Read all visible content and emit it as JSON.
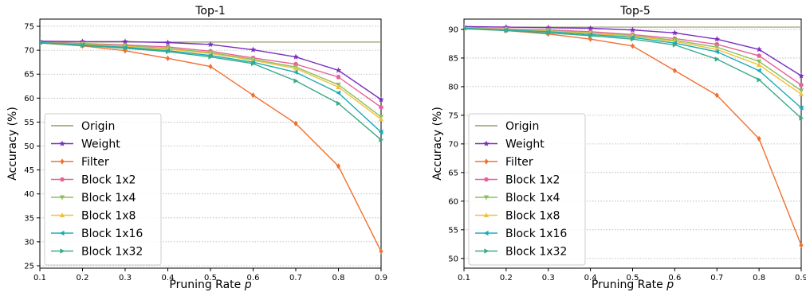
{
  "chart_data": [
    {
      "type": "line",
      "title": "Top-1",
      "xlabel_main": "Pruning Rate ",
      "xlabel_var": "p",
      "ylabel": "Accuracy (%)",
      "x": [
        0.1,
        0.2,
        0.3,
        0.4,
        0.5,
        0.6,
        0.7,
        0.8,
        0.9
      ],
      "xticks": [
        "0.1",
        "0.2",
        "0.3",
        "0.4",
        "0.5",
        "0.6",
        "0.7",
        "0.8",
        "0.9"
      ],
      "yticks": [
        25,
        30,
        35,
        40,
        45,
        50,
        55,
        60,
        65,
        70,
        75
      ],
      "xlim": [
        0.1,
        0.9
      ],
      "ylim": [
        24.5,
        76.5
      ],
      "grid": "horizontal-dotted",
      "legend_placement": "lower-left",
      "series": [
        {
          "name": "Origin",
          "color": "#9a9a6a",
          "marker": "none",
          "values": [
            71.7,
            71.7,
            71.7,
            71.7,
            71.7,
            71.7,
            71.7,
            71.7,
            71.7
          ]
        },
        {
          "name": "Weight",
          "color": "#7b2fbe",
          "marker": "star",
          "values": [
            71.9,
            71.8,
            71.8,
            71.6,
            71.2,
            70.1,
            68.6,
            65.8,
            59.7
          ]
        },
        {
          "name": "Filter",
          "color": "#f07030",
          "marker": "diamond",
          "values": [
            71.5,
            70.9,
            69.9,
            68.3,
            66.6,
            60.6,
            54.7,
            45.8,
            28.0
          ]
        },
        {
          "name": "Block 1x2",
          "color": "#e8629a",
          "marker": "circle",
          "values": [
            71.6,
            71.4,
            71.1,
            70.7,
            69.8,
            68.4,
            67.1,
            64.4,
            58.1
          ]
        },
        {
          "name": "Block 1x4",
          "color": "#8cbf5a",
          "marker": "triangle-down",
          "values": [
            71.6,
            71.3,
            70.9,
            70.4,
            69.5,
            68.1,
            66.5,
            62.8,
            56.1
          ]
        },
        {
          "name": "Block 1x8",
          "color": "#f0c040",
          "marker": "triangle-up",
          "values": [
            71.6,
            71.2,
            70.8,
            70.2,
            69.3,
            67.9,
            66.2,
            62.3,
            55.6
          ]
        },
        {
          "name": "Block 1x16",
          "color": "#1aacb8",
          "marker": "triangle-left",
          "values": [
            71.6,
            71.1,
            70.6,
            69.9,
            68.9,
            67.5,
            65.4,
            61.1,
            52.9
          ]
        },
        {
          "name": "Block 1x32",
          "color": "#3aaa8a",
          "marker": "triangle-right",
          "values": [
            71.5,
            71.0,
            70.4,
            69.7,
            68.6,
            67.2,
            63.6,
            58.9,
            51.3
          ]
        }
      ]
    },
    {
      "type": "line",
      "title": "Top-5",
      "xlabel_main": "Pruning Rate ",
      "xlabel_var": "p",
      "ylabel": "Accuracy (%)",
      "x": [
        0.1,
        0.2,
        0.3,
        0.4,
        0.5,
        0.6,
        0.7,
        0.8,
        0.9
      ],
      "xticks": [
        "0.1",
        "0.2",
        "0.3",
        "0.4",
        "0.5",
        "0.6",
        "0.7",
        "0.8",
        "0.9"
      ],
      "yticks": [
        50,
        55,
        60,
        65,
        70,
        75,
        80,
        85,
        90
      ],
      "xlim": [
        0.1,
        0.9
      ],
      "ylim": [
        48.3,
        91.8
      ],
      "grid": "horizontal-dotted",
      "legend_placement": "lower-left",
      "series": [
        {
          "name": "Origin",
          "color": "#9a9a6a",
          "marker": "none",
          "values": [
            90.4,
            90.4,
            90.4,
            90.4,
            90.4,
            90.4,
            90.4,
            90.4,
            90.4
          ]
        },
        {
          "name": "Weight",
          "color": "#7b2fbe",
          "marker": "star",
          "values": [
            90.5,
            90.4,
            90.3,
            90.2,
            89.9,
            89.4,
            88.3,
            86.5,
            81.9
          ]
        },
        {
          "name": "Filter",
          "color": "#f07030",
          "marker": "diamond",
          "values": [
            90.2,
            89.8,
            89.2,
            88.3,
            87.1,
            82.8,
            78.5,
            70.9,
            52.3
          ]
        },
        {
          "name": "Block 1x2",
          "color": "#e8629a",
          "marker": "circle",
          "values": [
            90.3,
            90.1,
            89.9,
            89.6,
            89.1,
            88.4,
            87.4,
            85.4,
            80.3
          ]
        },
        {
          "name": "Block 1x4",
          "color": "#8cbf5a",
          "marker": "triangle-down",
          "values": [
            90.3,
            90.0,
            89.8,
            89.4,
            88.9,
            88.1,
            86.9,
            84.4,
            79.3
          ]
        },
        {
          "name": "Block 1x8",
          "color": "#f0c040",
          "marker": "triangle-up",
          "values": [
            90.3,
            90.0,
            89.7,
            89.3,
            88.8,
            87.9,
            86.5,
            83.8,
            78.7
          ]
        },
        {
          "name": "Block 1x16",
          "color": "#1aacb8",
          "marker": "triangle-left",
          "values": [
            90.2,
            89.9,
            89.6,
            89.1,
            88.6,
            87.6,
            86.1,
            82.8,
            76.3
          ]
        },
        {
          "name": "Block 1x32",
          "color": "#3aaa8a",
          "marker": "triangle-right",
          "values": [
            90.1,
            89.8,
            89.4,
            88.9,
            88.3,
            87.3,
            84.8,
            81.2,
            74.5
          ]
        }
      ]
    }
  ]
}
